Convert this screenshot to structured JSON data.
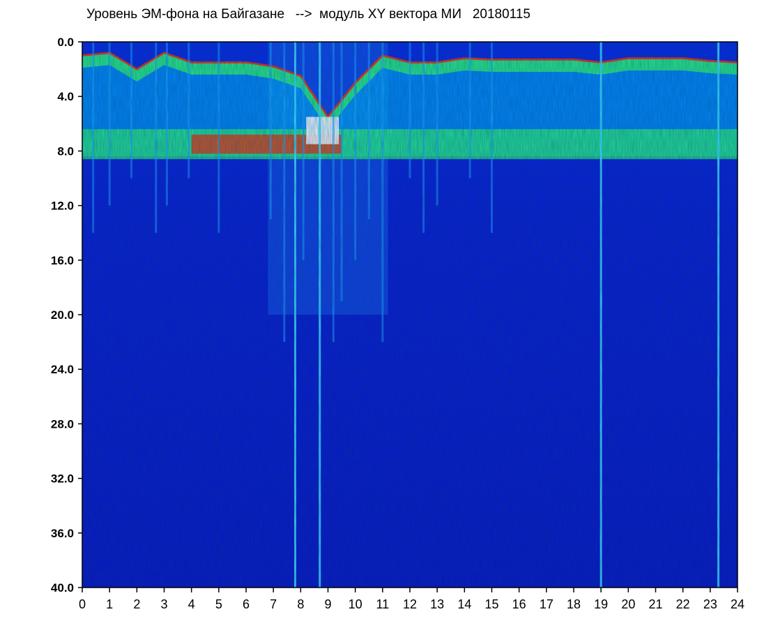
{
  "chart_data": {
    "type": "heatmap",
    "title": "Уровень ЭМ-фона на Байгазане   -->  модуль XY вектора МИ   20180115",
    "xlabel": "",
    "ylabel": "",
    "x_range": [
      0,
      24
    ],
    "y_range": [
      0.0,
      40.0
    ],
    "y_axis_inverted": true,
    "x_ticks": [
      "0",
      "1",
      "2",
      "3",
      "4",
      "5",
      "6",
      "7",
      "8",
      "9",
      "10",
      "11",
      "12",
      "13",
      "14",
      "15",
      "16",
      "17",
      "18",
      "19",
      "20",
      "21",
      "22",
      "23",
      "24"
    ],
    "y_ticks": [
      "0.0",
      "4.0",
      "8.0",
      "12.0",
      "16.0",
      "20.0",
      "24.0",
      "28.0",
      "32.0",
      "36.0",
      "40.0"
    ],
    "colormap": [
      "#0000c8",
      "#0044ff",
      "#00b4ff",
      "#00ffe0",
      "#66ff33",
      "#ffff00",
      "#ff3300",
      "#ffffff"
    ],
    "background_color": "#0a16c8",
    "colors": {
      "band_bright": "#ff2a00",
      "band_mid": "#33ff66",
      "band_low": "#00c8ff"
    },
    "grid": false,
    "features": {
      "upper_band_top_by_hour": [
        [
          0,
          1.0
        ],
        [
          1,
          0.8
        ],
        [
          2,
          2.0
        ],
        [
          3,
          0.8
        ],
        [
          4,
          1.5
        ],
        [
          5,
          1.5
        ],
        [
          6,
          1.5
        ],
        [
          7,
          1.8
        ],
        [
          8,
          2.5
        ],
        [
          9,
          5.5
        ],
        [
          10,
          3.0
        ],
        [
          11,
          1.0
        ],
        [
          12,
          1.5
        ],
        [
          13,
          1.5
        ],
        [
          14,
          1.2
        ],
        [
          15,
          1.3
        ],
        [
          16,
          1.3
        ],
        [
          17,
          1.3
        ],
        [
          18,
          1.3
        ],
        [
          19,
          1.5
        ],
        [
          20,
          1.2
        ],
        [
          21,
          1.2
        ],
        [
          22,
          1.2
        ],
        [
          23,
          1.4
        ],
        [
          24,
          1.5
        ]
      ],
      "resonance_band_center": 7.4,
      "intense_band_hours": [
        4,
        9.5
      ],
      "noise_plume": {
        "hours": [
          6.8,
          11.2
        ],
        "depth": 20
      },
      "vertical_streaks_hours": [
        0.4,
        1.0,
        1.8,
        2.7,
        3.1,
        3.9,
        5.0,
        6.9,
        7.4,
        7.8,
        8.1,
        8.7,
        9.2,
        9.5,
        10.0,
        10.5,
        11.0,
        12.0,
        12.5,
        13.0,
        14.2,
        15.0,
        19.0,
        23.3
      ],
      "full_height_lines_hours": [
        7.8,
        8.7,
        19.0,
        23.3
      ]
    }
  }
}
